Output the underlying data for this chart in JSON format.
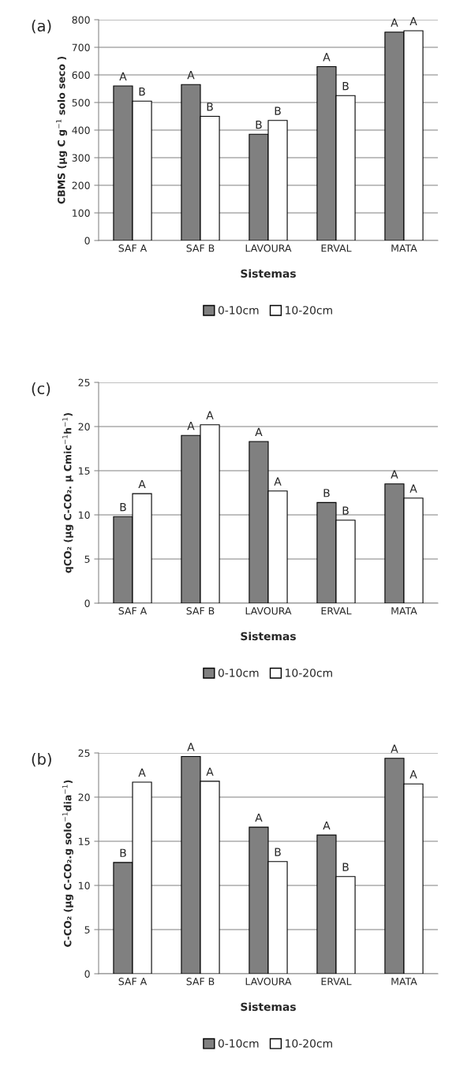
{
  "chart_data": [
    {
      "type": "bar",
      "title": "(a)",
      "xlabel": "Sistemas",
      "ylabel": "CBMS (µg C g$^{−1}$ solo seco )",
      "categories": [
        "SAF A",
        "SAF B",
        "LAVOURA",
        "ERVAL",
        "MATA"
      ],
      "series": [
        {
          "name": "0-10cm",
          "color": "#808080",
          "values": [
            560,
            565,
            385,
            630,
            755
          ],
          "value_labels": [
            "A",
            "A",
            "B",
            "A",
            "A"
          ]
        },
        {
          "name": "10-20cm",
          "color": "#ffffff",
          "values": [
            505,
            450,
            435,
            525,
            760
          ],
          "value_labels": [
            "B",
            "B",
            "B",
            "B",
            "A"
          ]
        }
      ],
      "ylim": [
        0,
        800
      ],
      "yticks": [
        0,
        100,
        200,
        300,
        400,
        500,
        600,
        700,
        800
      ],
      "grid": "y",
      "legend": "bottom"
    },
    {
      "type": "bar",
      "title": "(c)",
      "xlabel": "Sistemas",
      "ylabel": "qCO₂ (µg C-CO₂. µ Cmic$^{−1}$h$^{−1}$)",
      "categories": [
        "SAF A",
        "SAF B",
        "LAVOURA",
        "ERVAL",
        "MATA"
      ],
      "series": [
        {
          "name": "0-10cm",
          "color": "#808080",
          "values": [
            9.8,
            19.0,
            18.3,
            11.4,
            13.5
          ],
          "value_labels": [
            "B",
            "A",
            "A",
            "B",
            "A"
          ]
        },
        {
          "name": "10-20cm",
          "color": "#ffffff",
          "values": [
            12.4,
            20.2,
            12.7,
            9.4,
            11.9
          ],
          "value_labels": [
            "A",
            "A",
            "A",
            "B",
            "A"
          ]
        }
      ],
      "ylim": [
        0,
        25
      ],
      "yticks": [
        0,
        5,
        10,
        15,
        20,
        25
      ],
      "grid": "y",
      "legend": "bottom"
    },
    {
      "type": "bar",
      "title": "(b)",
      "xlabel": "Sistemas",
      "ylabel": "C-CO₂ (µg C-CO₂.g solo$^{−1}$dia$^{−1}$)",
      "categories": [
        "SAF A",
        "SAF B",
        "LAVOURA",
        "ERVAL",
        "MATA"
      ],
      "series": [
        {
          "name": "0-10cm",
          "color": "#808080",
          "values": [
            12.6,
            24.6,
            16.6,
            15.7,
            24.4
          ],
          "value_labels": [
            "B",
            "A",
            "A",
            "A",
            "A"
          ]
        },
        {
          "name": "10-20cm",
          "color": "#ffffff",
          "values": [
            21.7,
            21.8,
            12.7,
            11.0,
            21.5
          ],
          "value_labels": [
            "A",
            "A",
            "B",
            "B",
            "A"
          ]
        }
      ],
      "ylim": [
        0,
        25
      ],
      "yticks": [
        0,
        5,
        10,
        15,
        20,
        25
      ],
      "grid": "y",
      "legend": "bottom"
    }
  ]
}
